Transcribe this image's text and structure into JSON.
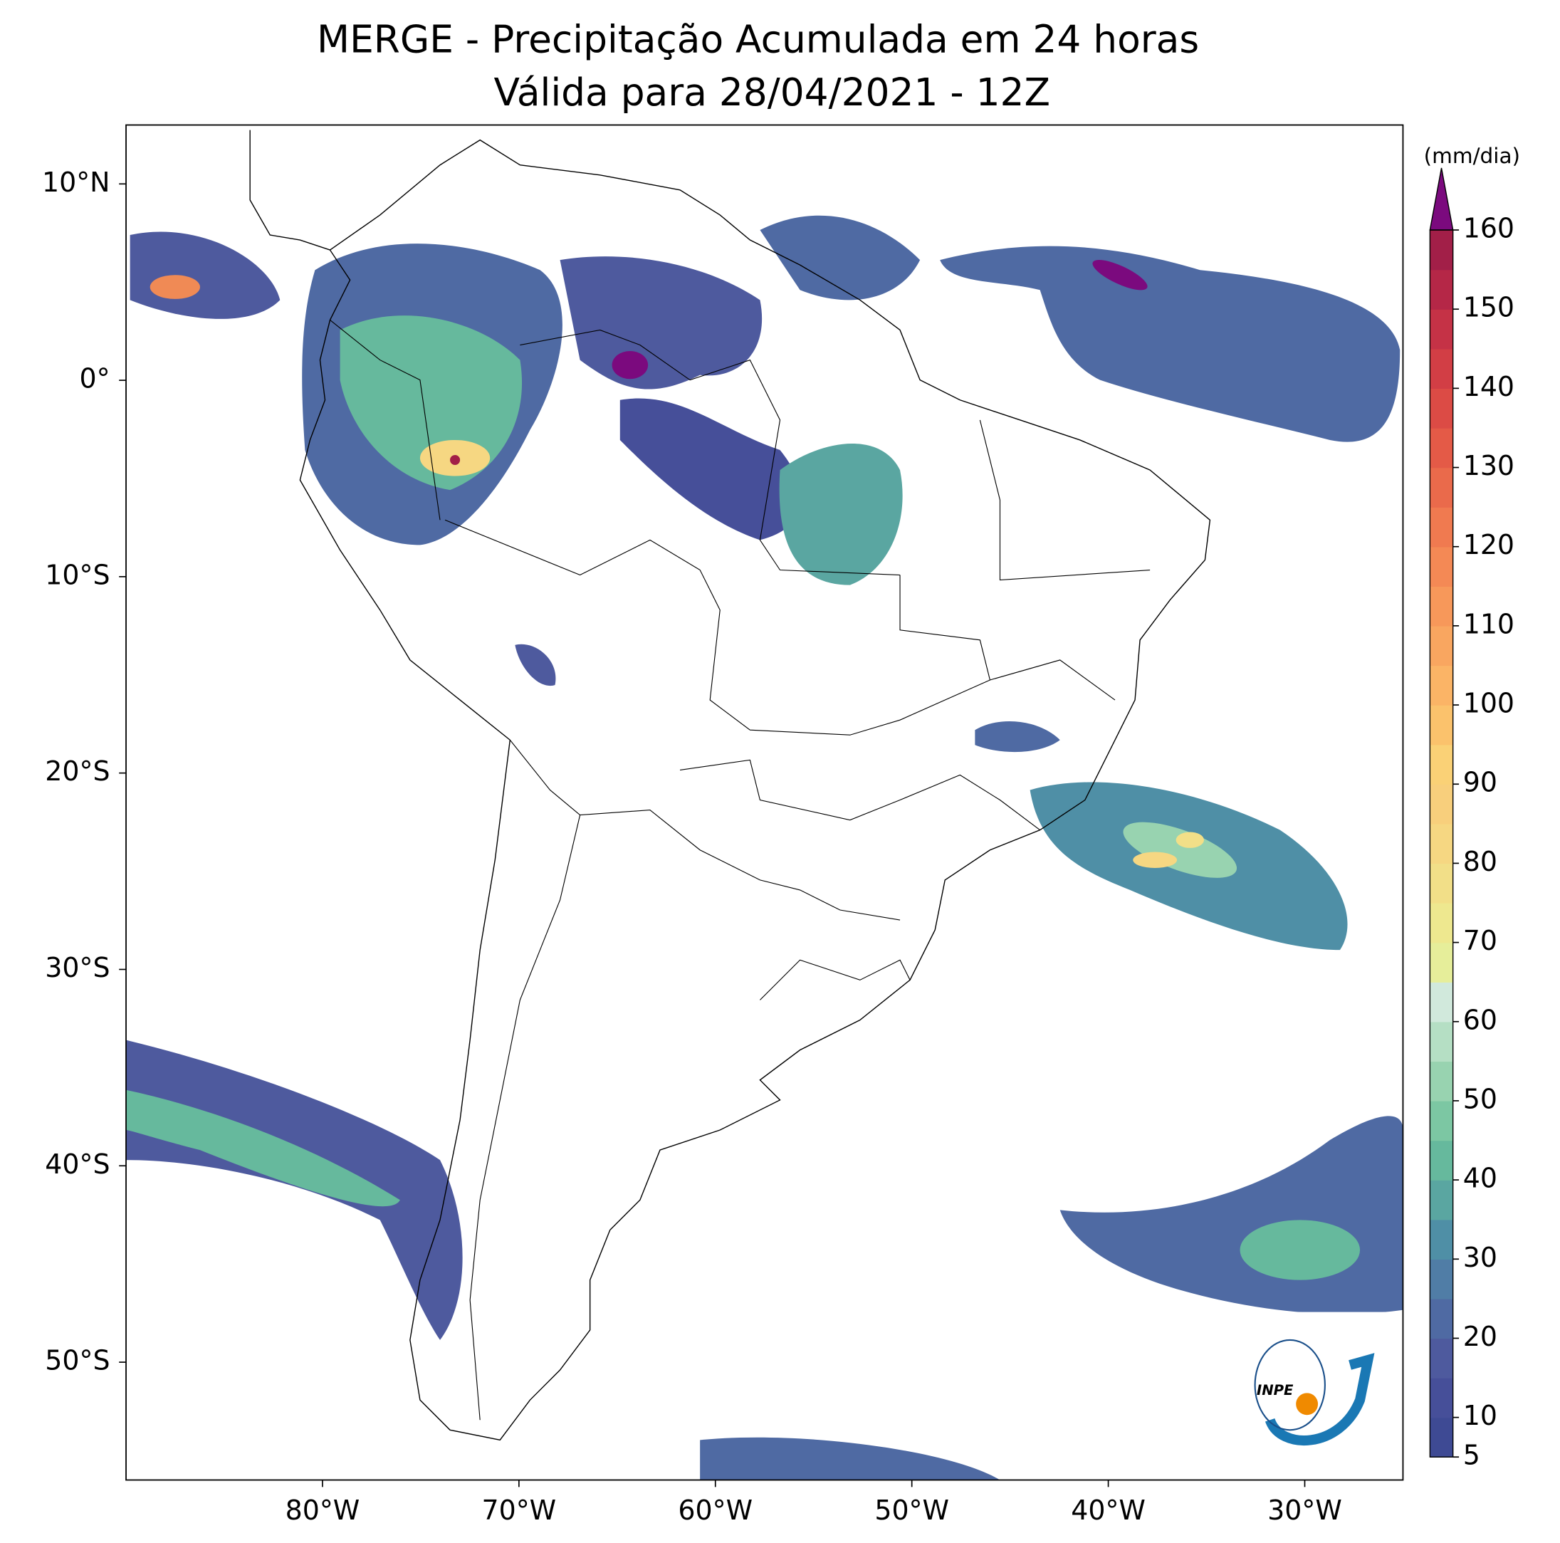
{
  "header": {
    "title": "MERGE - Precipitação Acumulada em 24 horas",
    "subtitle": "Válida para 28/04/2021 - 12Z"
  },
  "map": {
    "xlim": [
      -90,
      -25
    ],
    "ylim": [
      -56,
      13
    ],
    "xticks": [
      {
        "value": -80,
        "label": "80°W"
      },
      {
        "value": -70,
        "label": "70°W"
      },
      {
        "value": -60,
        "label": "60°W"
      },
      {
        "value": -50,
        "label": "50°W"
      },
      {
        "value": -40,
        "label": "40°W"
      },
      {
        "value": -30,
        "label": "30°W"
      }
    ],
    "yticks": [
      {
        "value": 10,
        "label": "10°N"
      },
      {
        "value": 0,
        "label": "0°"
      },
      {
        "value": -10,
        "label": "10°S"
      },
      {
        "value": -20,
        "label": "20°S"
      },
      {
        "value": -30,
        "label": "30°S"
      },
      {
        "value": -40,
        "label": "40°S"
      },
      {
        "value": -50,
        "label": "50°S"
      }
    ]
  },
  "colorbar": {
    "label": "(mm/dia)",
    "clim": [
      5,
      160
    ],
    "ticks": [
      5,
      10,
      20,
      30,
      40,
      50,
      60,
      70,
      80,
      90,
      100,
      110,
      120,
      130,
      140,
      150,
      160
    ],
    "levels": [
      5,
      10,
      15,
      20,
      25,
      30,
      35,
      40,
      45,
      50,
      55,
      60,
      65,
      70,
      75,
      80,
      85,
      90,
      95,
      100,
      105,
      110,
      115,
      120,
      125,
      130,
      135,
      140,
      145,
      150,
      155,
      160
    ],
    "colors": [
      "#3e4a94",
      "#464f99",
      "#4e5a9e",
      "#4f6aa3",
      "#507da6",
      "#4f8fa6",
      "#5aa6a1",
      "#66b99d",
      "#7cc7a3",
      "#98d3b0",
      "#b5dfc4",
      "#d1e9dc",
      "#e6ee9a",
      "#eee88f",
      "#f2df88",
      "#f6d782",
      "#f8cf7c",
      "#fad176",
      "#fbc26c",
      "#fbb466",
      "#f9a660",
      "#f7985a",
      "#f48955",
      "#f07a50",
      "#ea6a4b",
      "#e45a47",
      "#dc4b45",
      "#d23e45",
      "#c53246",
      "#b52747",
      "#a21f48"
    ],
    "extend_color": "#7b0a7e"
  },
  "logo": {
    "text": "INPE"
  }
}
